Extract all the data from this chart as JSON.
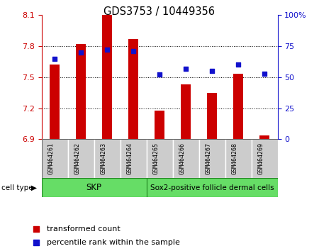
{
  "title": "GDS3753 / 10449356",
  "samples": [
    "GSM464261",
    "GSM464262",
    "GSM464263",
    "GSM464264",
    "GSM464265",
    "GSM464266",
    "GSM464267",
    "GSM464268",
    "GSM464269"
  ],
  "transformed_counts": [
    7.62,
    7.82,
    8.1,
    7.87,
    7.18,
    7.43,
    7.35,
    7.53,
    6.94
  ],
  "percentile_ranks": [
    65,
    70,
    72,
    71,
    52,
    57,
    55,
    60,
    53
  ],
  "ylim_left": [
    6.9,
    8.1
  ],
  "ylim_right": [
    0,
    100
  ],
  "yticks_left": [
    6.9,
    7.2,
    7.5,
    7.8,
    8.1
  ],
  "yticks_right": [
    0,
    25,
    50,
    75,
    100
  ],
  "ytick_labels_left": [
    "6.9",
    "7.2",
    "7.5",
    "7.8",
    "8.1"
  ],
  "ytick_labels_right": [
    "0",
    "25",
    "50",
    "75",
    "100%"
  ],
  "skp_count": 4,
  "sox2_count": 5,
  "bar_color": "#cc0000",
  "dot_color": "#1111cc",
  "bar_width": 0.4,
  "tick_label_color_left": "#cc0000",
  "tick_label_color_right": "#1111cc",
  "cell_type_skp": "SKP",
  "cell_type_sox2": "Sox2-positive follicle dermal cells",
  "cell_type_bg": "#66dd66",
  "sample_box_bg": "#cccccc",
  "legend_label_1": "transformed count",
  "legend_label_2": "percentile rank within the sample",
  "cell_type_text": "cell type"
}
